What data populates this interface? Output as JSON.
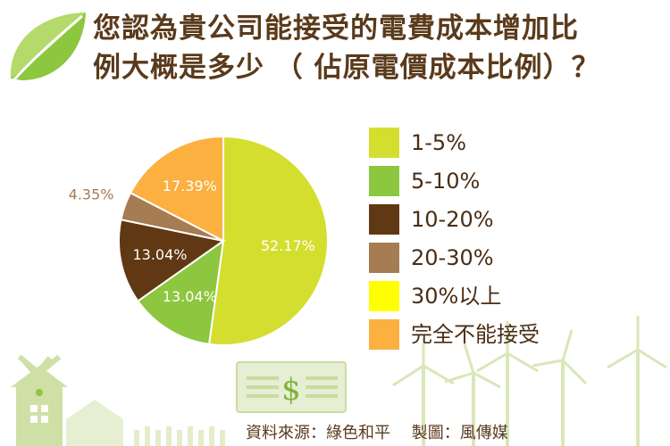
{
  "title": {
    "line1": "您認為貴公司能接受的電費成本增加比",
    "line2": "例大概是多少 （ 佔原電價成本比例）？"
  },
  "chart_data": {
    "type": "pie",
    "title": "您認為貴公司能接受的電費成本增加比例大概是多少 （ 佔原電價成本比例）？",
    "categories": [
      "1-5%",
      "5-10%",
      "10-20%",
      "20-30%",
      "30%以上",
      "完全不能接受"
    ],
    "values": [
      52.17,
      13.04,
      13.04,
      4.35,
      0,
      17.39
    ],
    "value_labels": [
      "52.17%",
      "13.04%",
      "13.04%",
      "4.35%",
      "",
      "17.39%"
    ],
    "colors": [
      "#d4de2f",
      "#8dc63f",
      "#603813",
      "#a67c52",
      "#ffff00",
      "#fbb040"
    ],
    "legend_position": "right"
  },
  "legend": {
    "items": [
      {
        "label": "1-5%",
        "color": "#d4de2f"
      },
      {
        "label": "5-10%",
        "color": "#8dc63f"
      },
      {
        "label": "10-20%",
        "color": "#603813"
      },
      {
        "label": "20-30%",
        "color": "#a67c52"
      },
      {
        "label": "30%以上",
        "color": "#ffff00"
      },
      {
        "label": "完全不能接受",
        "color": "#fbb040"
      }
    ]
  },
  "credit": "資料來源：綠色和平　 製圖：風傳媒",
  "colors": {
    "title": "#5a3a1b",
    "leaf": "#8dc63f",
    "scenery": "#dfe9c4"
  },
  "icons": [
    "leaf-icon",
    "windmill-icon",
    "house-icon",
    "dollar-bill-icon",
    "wind-turbine-icon"
  ]
}
